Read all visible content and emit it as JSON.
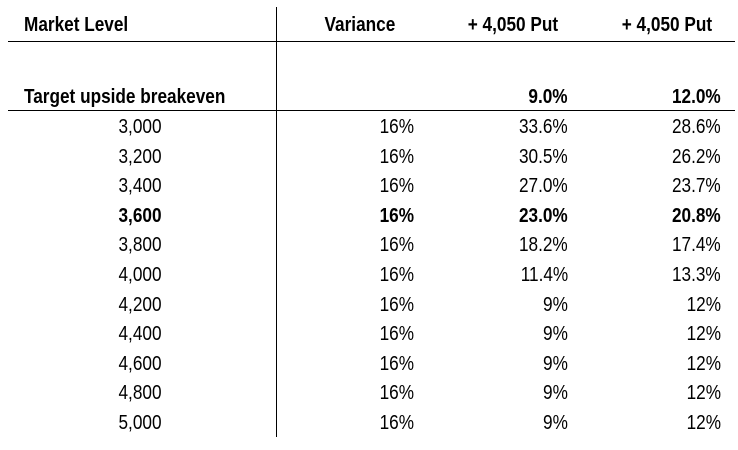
{
  "table": {
    "headers": {
      "market_level": "Market Level",
      "variance": "Variance",
      "put_a": "+ 4,050 Put",
      "put_b": "+ 4,050 Put"
    },
    "target": {
      "label": "Target upside breakeven",
      "variance": "",
      "put_a": "9.0%",
      "put_b": "12.0%"
    },
    "rows": [
      {
        "level": "3,000",
        "variance": "16%",
        "put_a": "33.6%",
        "put_b": "28.6%",
        "bold": false
      },
      {
        "level": "3,200",
        "variance": "16%",
        "put_a": "30.5%",
        "put_b": "26.2%",
        "bold": false
      },
      {
        "level": "3,400",
        "variance": "16%",
        "put_a": "27.0%",
        "put_b": "23.7%",
        "bold": false
      },
      {
        "level": "3,600",
        "variance": "16%",
        "put_a": "23.0%",
        "put_b": "20.8%",
        "bold": true
      },
      {
        "level": "3,800",
        "variance": "16%",
        "put_a": "18.2%",
        "put_b": "17.4%",
        "bold": false
      },
      {
        "level": "4,000",
        "variance": "16%",
        "put_a": "11.4%",
        "put_b": "13.3%",
        "bold": false
      },
      {
        "level": "4,200",
        "variance": "16%",
        "put_a": "9%",
        "put_b": "12%",
        "bold": false
      },
      {
        "level": "4,400",
        "variance": "16%",
        "put_a": "9%",
        "put_b": "12%",
        "bold": false
      },
      {
        "level": "4,600",
        "variance": "16%",
        "put_a": "9%",
        "put_b": "12%",
        "bold": false
      },
      {
        "level": "4,800",
        "variance": "16%",
        "put_a": "9%",
        "put_b": "12%",
        "bold": false
      },
      {
        "level": "5,000",
        "variance": "16%",
        "put_a": "9%",
        "put_b": "12%",
        "bold": false
      }
    ]
  }
}
